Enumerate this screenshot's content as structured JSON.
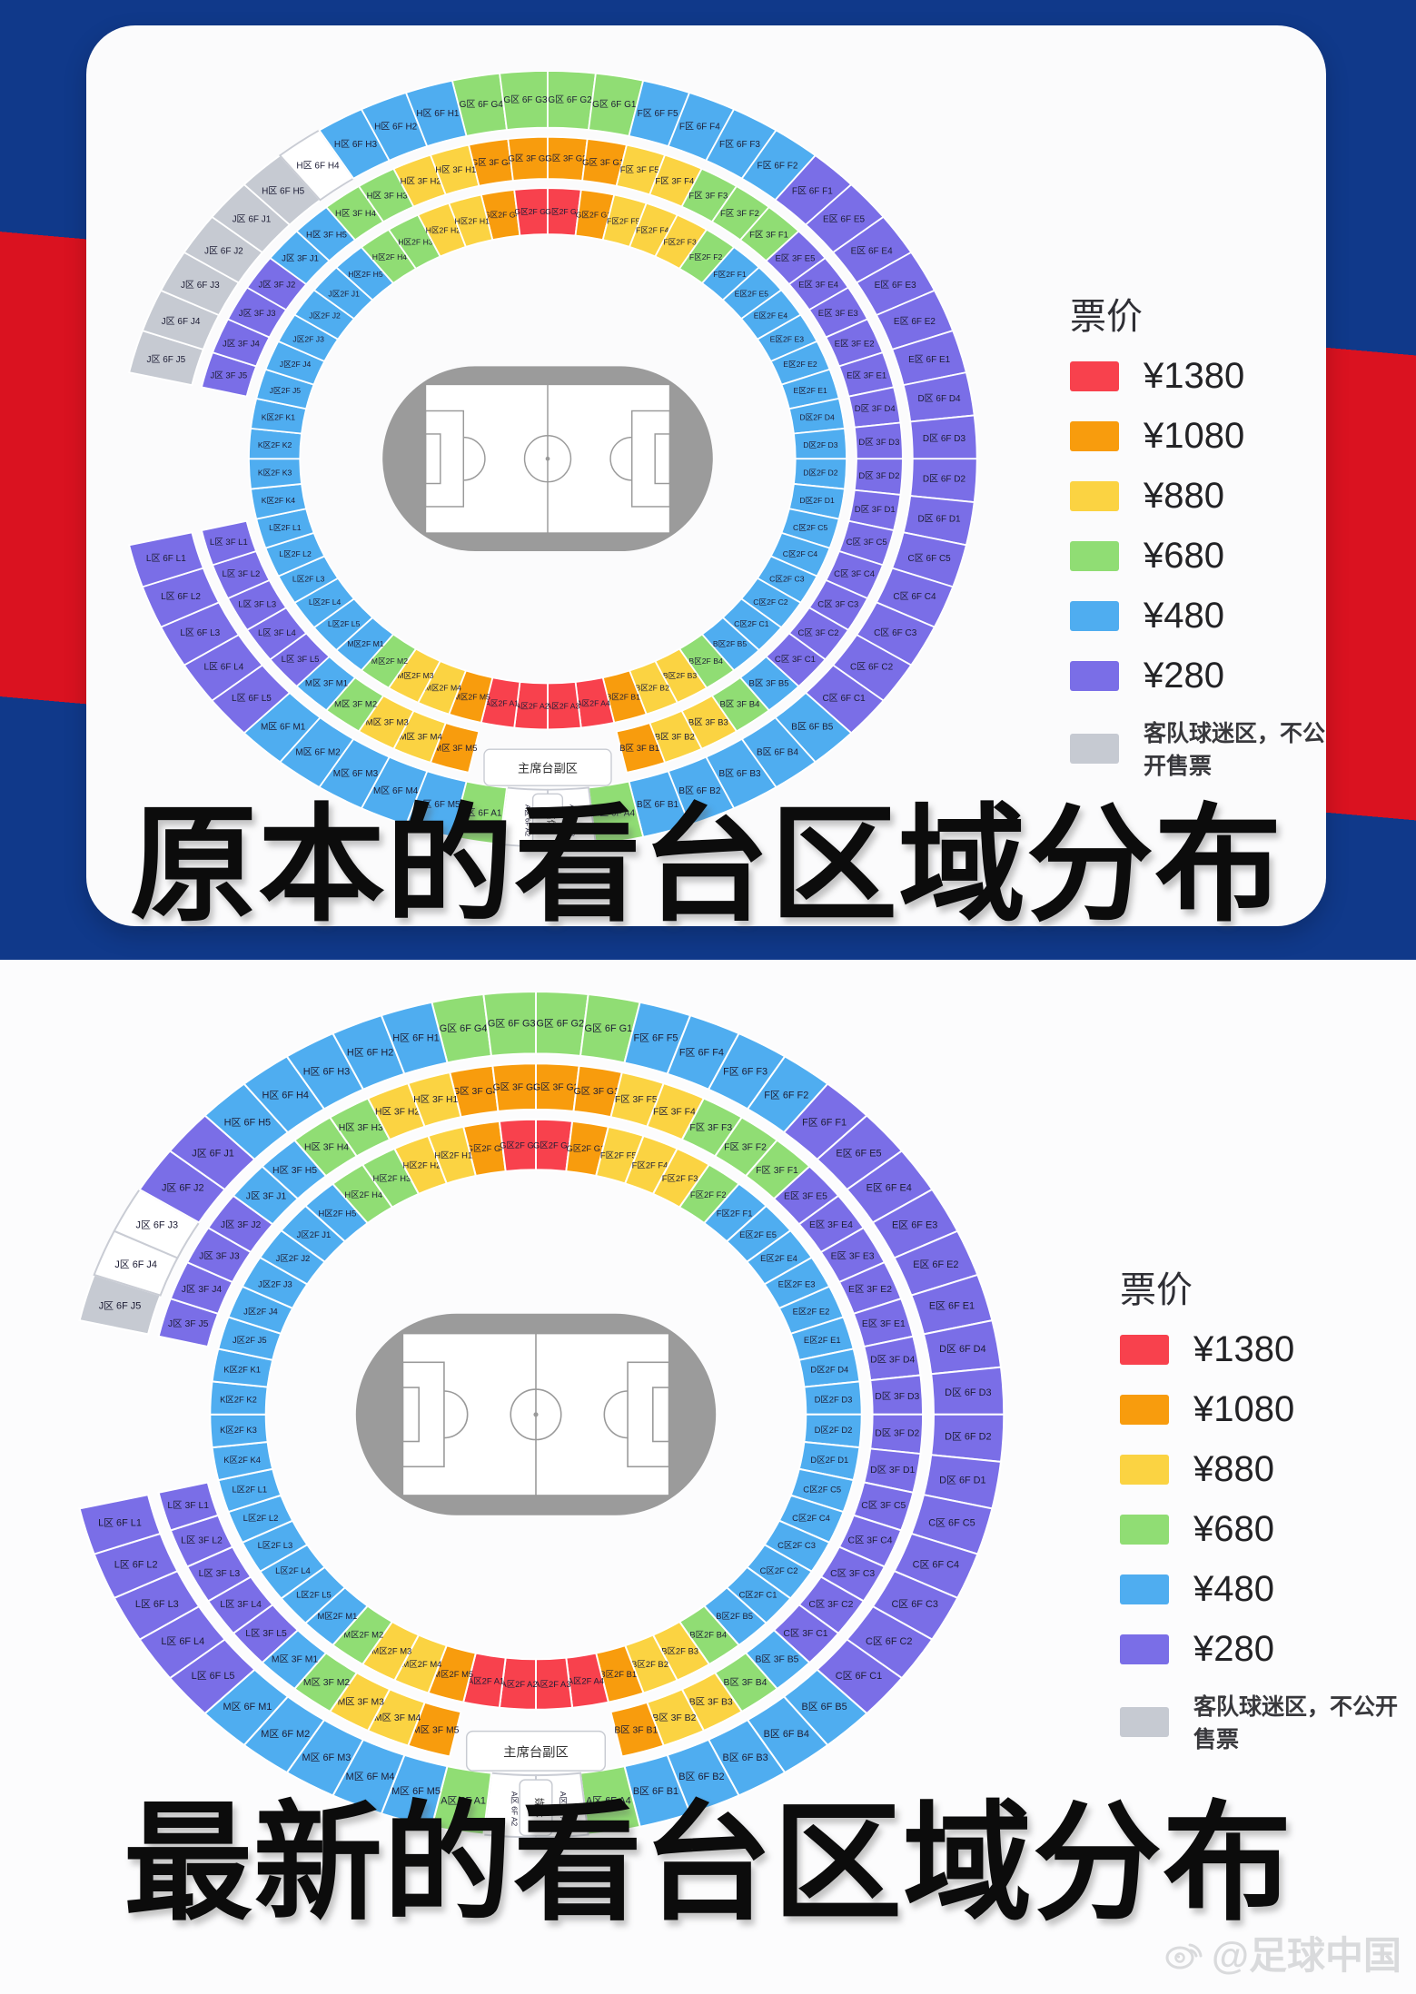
{
  "page": {
    "top_title": "原本的看台区域分布",
    "bottom_title": "最新的看台区域分布",
    "watermark": "@足球中国"
  },
  "legend": {
    "title": "票价",
    "items": [
      {
        "label": "¥1380",
        "color": "#F8414D"
      },
      {
        "label": "¥1080",
        "color": "#F89C0D"
      },
      {
        "label": "¥880",
        "color": "#FBD342"
      },
      {
        "label": "¥680",
        "color": "#90DD74"
      },
      {
        "label": "¥480",
        "color": "#4FADF0"
      },
      {
        "label": "¥280",
        "color": "#7A6EE7"
      }
    ],
    "away_note": {
      "label": "客队球迷区，不公开售票",
      "color": "#C6CAD2"
    }
  },
  "colors": {
    "r": "#F8414D",
    "o": "#F89C0D",
    "y": "#FBD342",
    "g": "#90DD74",
    "b": "#4FADF0",
    "p": "#7A6EE7",
    "x": "#C6CAD2",
    "w": "#FFFFFF"
  },
  "stadium_labels": {
    "vip_box": "主席台副区",
    "media_box": "媒体"
  },
  "stadiums": {
    "original": {
      "f6": [
        [
          "G区 6F G4",
          "g"
        ],
        [
          "G区 6F G3",
          "g"
        ],
        [
          "G区 6F G2",
          "g"
        ],
        [
          "G区 6F G1",
          "g"
        ],
        [
          "F区 6F F5",
          "b"
        ],
        [
          "F区 6F F4",
          "b"
        ],
        [
          "F区 6F F3",
          "b"
        ],
        [
          "F区 6F F2",
          "b"
        ],
        [
          "F区 6F F1",
          "p"
        ],
        [
          "E区 6F E5",
          "p"
        ],
        [
          "E区 6F E4",
          "p"
        ],
        [
          "E区 6F E3",
          "p"
        ],
        [
          "E区 6F E2",
          "p"
        ],
        [
          "E区 6F E1",
          "p"
        ],
        [
          "D区 6F D4",
          "p"
        ],
        [
          "D区 6F D3",
          "p"
        ],
        [
          "D区 6F D2",
          "p"
        ],
        [
          "D区 6F D1",
          "p"
        ],
        [
          "C区 6F C5",
          "p"
        ],
        [
          "C区 6F C4",
          "p"
        ],
        [
          "C区 6F C3",
          "p"
        ],
        [
          "C区 6F C2",
          "p"
        ],
        [
          "C区 6F C1",
          "p"
        ],
        [
          "B区 6F B5",
          "b"
        ],
        [
          "B区 6F B4",
          "b"
        ],
        [
          "B区 6F B3",
          "b"
        ],
        [
          "B区 6F B2",
          "b"
        ],
        [
          "B区 6F B1",
          "b"
        ],
        [
          "A区 6F A4",
          "g"
        ],
        [
          "A区 6F A3",
          "w"
        ],
        [
          "A区 6F A2",
          "w"
        ],
        [
          "A区 6F A1",
          "g"
        ],
        [
          "M区 6F M5",
          "b"
        ],
        [
          "M区 6F M4",
          "b"
        ],
        [
          "M区 6F M3",
          "b"
        ],
        [
          "M区 6F M2",
          "b"
        ],
        [
          "M区 6F M1",
          "b"
        ],
        [
          "L区 6F L5",
          "p"
        ],
        [
          "L区 6F L4",
          "p"
        ],
        [
          "L区 6F L3",
          "p"
        ],
        [
          "L区 6F L2",
          "p"
        ],
        [
          "L区 6F L1",
          "p"
        ],
        [
          "",
          "n"
        ],
        [
          "",
          "n"
        ],
        [
          "",
          "n"
        ],
        [
          "",
          "n"
        ],
        [
          "J区 6F J5",
          "x"
        ],
        [
          "J区 6F J4",
          "x"
        ],
        [
          "J区 6F J3",
          "x"
        ],
        [
          "J区 6F J2",
          "x"
        ],
        [
          "J区 6F J1",
          "x"
        ],
        [
          "H区 6F H5",
          "x"
        ],
        [
          "H区 6F H4",
          "w"
        ],
        [
          "H区 6F H3",
          "b"
        ],
        [
          "H区 6F H2",
          "b"
        ],
        [
          "H区 6F H1",
          "b"
        ]
      ],
      "f3": [
        [
          "G区 3F G4",
          "o"
        ],
        [
          "G区 3F G3",
          "o"
        ],
        [
          "G区 3F G2",
          "o"
        ],
        [
          "G区 3F G1",
          "o"
        ],
        [
          "F区 3F F5",
          "y"
        ],
        [
          "F区 3F F4",
          "y"
        ],
        [
          "F区 3F F3",
          "g"
        ],
        [
          "F区 3F F2",
          "g"
        ],
        [
          "F区 3F F1",
          "g"
        ],
        [
          "E区 3F E5",
          "p"
        ],
        [
          "E区 3F E4",
          "p"
        ],
        [
          "E区 3F E3",
          "p"
        ],
        [
          "E区 3F E2",
          "p"
        ],
        [
          "E区 3F E1",
          "p"
        ],
        [
          "D区 3F D4",
          "p"
        ],
        [
          "D区 3F D3",
          "p"
        ],
        [
          "D区 3F D2",
          "p"
        ],
        [
          "D区 3F D1",
          "p"
        ],
        [
          "C区 3F C5",
          "p"
        ],
        [
          "C区 3F C4",
          "p"
        ],
        [
          "C区 3F C3",
          "p"
        ],
        [
          "C区 3F C2",
          "p"
        ],
        [
          "C区 3F C1",
          "p"
        ],
        [
          "B区 3F B5",
          "b"
        ],
        [
          "B区 3F B4",
          "g"
        ],
        [
          "B区 3F B3",
          "y"
        ],
        [
          "B区 3F B2",
          "y"
        ],
        [
          "B区 3F B1",
          "o"
        ],
        [
          "",
          "n"
        ],
        [
          "",
          "n"
        ],
        [
          "",
          "n"
        ],
        [
          "",
          "n"
        ],
        [
          "M区 3F M5",
          "o"
        ],
        [
          "M区 3F M4",
          "y"
        ],
        [
          "M区 3F M3",
          "y"
        ],
        [
          "M区 3F M2",
          "g"
        ],
        [
          "M区 3F M1",
          "b"
        ],
        [
          "L区 3F L5",
          "p"
        ],
        [
          "L区 3F L4",
          "p"
        ],
        [
          "L区 3F L3",
          "p"
        ],
        [
          "L区 3F L2",
          "p"
        ],
        [
          "L区 3F L1",
          "p"
        ],
        [
          "",
          "n"
        ],
        [
          "",
          "n"
        ],
        [
          "",
          "n"
        ],
        [
          "",
          "n"
        ],
        [
          "J区 3F J5",
          "p"
        ],
        [
          "J区 3F J4",
          "p"
        ],
        [
          "J区 3F J3",
          "p"
        ],
        [
          "J区 3F J2",
          "p"
        ],
        [
          "J区 3F J1",
          "b"
        ],
        [
          "H区 3F H5",
          "b"
        ],
        [
          "H区 3F H4",
          "g"
        ],
        [
          "H区 3F H3",
          "g"
        ],
        [
          "H区 3F H2",
          "y"
        ],
        [
          "H区 3F H1",
          "y"
        ]
      ],
      "f2": [
        [
          "G区2F G4",
          "o"
        ],
        [
          "G区2F G3",
          "r"
        ],
        [
          "G区2F G2",
          "r"
        ],
        [
          "G区2F G1",
          "o"
        ],
        [
          "F区2F F5",
          "y"
        ],
        [
          "F区2F F4",
          "y"
        ],
        [
          "F区2F F3",
          "y"
        ],
        [
          "F区2F F2",
          "g"
        ],
        [
          "F区2F F1",
          "b"
        ],
        [
          "E区2F E5",
          "b"
        ],
        [
          "E区2F E4",
          "b"
        ],
        [
          "E区2F E3",
          "b"
        ],
        [
          "E区2F E2",
          "b"
        ],
        [
          "E区2F E1",
          "b"
        ],
        [
          "D区2F D4",
          "b"
        ],
        [
          "D区2F D3",
          "b"
        ],
        [
          "D区2F D2",
          "b"
        ],
        [
          "D区2F D1",
          "b"
        ],
        [
          "C区2F C5",
          "b"
        ],
        [
          "C区2F C4",
          "b"
        ],
        [
          "C区2F C3",
          "b"
        ],
        [
          "C区2F C2",
          "b"
        ],
        [
          "C区2F C1",
          "b"
        ],
        [
          "B区2F B5",
          "b"
        ],
        [
          "B区2F B4",
          "g"
        ],
        [
          "B区2F B3",
          "y"
        ],
        [
          "B区2F B2",
          "y"
        ],
        [
          "B区2F B1",
          "o"
        ],
        [
          "A区2F A4",
          "r"
        ],
        [
          "A区2F A3",
          "r"
        ],
        [
          "A区2F A2",
          "r"
        ],
        [
          "A区2F A1",
          "r"
        ],
        [
          "M区2F M5",
          "o"
        ],
        [
          "M区2F M4",
          "y"
        ],
        [
          "M区2F M3",
          "y"
        ],
        [
          "M区2F M2",
          "g"
        ],
        [
          "M区2F M1",
          "b"
        ],
        [
          "L区2F L5",
          "b"
        ],
        [
          "L区2F L4",
          "b"
        ],
        [
          "L区2F L3",
          "b"
        ],
        [
          "L区2F L2",
          "b"
        ],
        [
          "L区2F L1",
          "b"
        ],
        [
          "K区2F K4",
          "b"
        ],
        [
          "K区2F K3",
          "b"
        ],
        [
          "K区2F K2",
          "b"
        ],
        [
          "K区2F K1",
          "b"
        ],
        [
          "J区2F J5",
          "b"
        ],
        [
          "J区2F J4",
          "b"
        ],
        [
          "J区2F J3",
          "b"
        ],
        [
          "J区2F J2",
          "b"
        ],
        [
          "J区2F J1",
          "b"
        ],
        [
          "H区2F H5",
          "b"
        ],
        [
          "H区2F H4",
          "g"
        ],
        [
          "H区2F H3",
          "g"
        ],
        [
          "H区2F H2",
          "y"
        ],
        [
          "H区2F H1",
          "y"
        ]
      ]
    },
    "latest": {
      "f6": [
        [
          "G区 6F G4",
          "g"
        ],
        [
          "G区 6F G3",
          "g"
        ],
        [
          "G区 6F G2",
          "g"
        ],
        [
          "G区 6F G1",
          "g"
        ],
        [
          "F区 6F F5",
          "b"
        ],
        [
          "F区 6F F4",
          "b"
        ],
        [
          "F区 6F F3",
          "b"
        ],
        [
          "F区 6F F2",
          "b"
        ],
        [
          "F区 6F F1",
          "p"
        ],
        [
          "E区 6F E5",
          "p"
        ],
        [
          "E区 6F E4",
          "p"
        ],
        [
          "E区 6F E3",
          "p"
        ],
        [
          "E区 6F E2",
          "p"
        ],
        [
          "E区 6F E1",
          "p"
        ],
        [
          "D区 6F D4",
          "p"
        ],
        [
          "D区 6F D3",
          "p"
        ],
        [
          "D区 6F D2",
          "p"
        ],
        [
          "D区 6F D1",
          "p"
        ],
        [
          "C区 6F C5",
          "p"
        ],
        [
          "C区 6F C4",
          "p"
        ],
        [
          "C区 6F C3",
          "p"
        ],
        [
          "C区 6F C2",
          "p"
        ],
        [
          "C区 6F C1",
          "p"
        ],
        [
          "B区 6F B5",
          "b"
        ],
        [
          "B区 6F B4",
          "b"
        ],
        [
          "B区 6F B3",
          "b"
        ],
        [
          "B区 6F B2",
          "b"
        ],
        [
          "B区 6F B1",
          "b"
        ],
        [
          "A区 6F A4",
          "g"
        ],
        [
          "A区 6F A3",
          "w"
        ],
        [
          "A区 6F A2",
          "w"
        ],
        [
          "A区 6F A1",
          "g"
        ],
        [
          "M区 6F M5",
          "b"
        ],
        [
          "M区 6F M4",
          "b"
        ],
        [
          "M区 6F M3",
          "b"
        ],
        [
          "M区 6F M2",
          "b"
        ],
        [
          "M区 6F M1",
          "b"
        ],
        [
          "L区 6F L5",
          "p"
        ],
        [
          "L区 6F L4",
          "p"
        ],
        [
          "L区 6F L3",
          "p"
        ],
        [
          "L区 6F L2",
          "p"
        ],
        [
          "L区 6F L1",
          "p"
        ],
        [
          "",
          "n"
        ],
        [
          "",
          "n"
        ],
        [
          "",
          "n"
        ],
        [
          "",
          "n"
        ],
        [
          "J区 6F J5",
          "x"
        ],
        [
          "J区 6F J4",
          "w"
        ],
        [
          "J区 6F J3",
          "w"
        ],
        [
          "J区 6F J2",
          "p"
        ],
        [
          "J区 6F J1",
          "p"
        ],
        [
          "H区 6F H5",
          "b"
        ],
        [
          "H区 6F H4",
          "b"
        ],
        [
          "H区 6F H3",
          "b"
        ],
        [
          "H区 6F H2",
          "b"
        ],
        [
          "H区 6F H1",
          "b"
        ]
      ],
      "f3": [
        [
          "G区 3F G4",
          "o"
        ],
        [
          "G区 3F G3",
          "o"
        ],
        [
          "G区 3F G2",
          "o"
        ],
        [
          "G区 3F G1",
          "o"
        ],
        [
          "F区 3F F5",
          "y"
        ],
        [
          "F区 3F F4",
          "y"
        ],
        [
          "F区 3F F3",
          "g"
        ],
        [
          "F区 3F F2",
          "g"
        ],
        [
          "F区 3F F1",
          "g"
        ],
        [
          "E区 3F E5",
          "p"
        ],
        [
          "E区 3F E4",
          "p"
        ],
        [
          "E区 3F E3",
          "p"
        ],
        [
          "E区 3F E2",
          "p"
        ],
        [
          "E区 3F E1",
          "p"
        ],
        [
          "D区 3F D4",
          "p"
        ],
        [
          "D区 3F D3",
          "p"
        ],
        [
          "D区 3F D2",
          "p"
        ],
        [
          "D区 3F D1",
          "p"
        ],
        [
          "C区 3F C5",
          "p"
        ],
        [
          "C区 3F C4",
          "p"
        ],
        [
          "C区 3F C3",
          "p"
        ],
        [
          "C区 3F C2",
          "p"
        ],
        [
          "C区 3F C1",
          "p"
        ],
        [
          "B区 3F B5",
          "b"
        ],
        [
          "B区 3F B4",
          "g"
        ],
        [
          "B区 3F B3",
          "y"
        ],
        [
          "B区 3F B2",
          "y"
        ],
        [
          "B区 3F B1",
          "o"
        ],
        [
          "",
          "n"
        ],
        [
          "",
          "n"
        ],
        [
          "",
          "n"
        ],
        [
          "",
          "n"
        ],
        [
          "M区 3F M5",
          "o"
        ],
        [
          "M区 3F M4",
          "y"
        ],
        [
          "M区 3F M3",
          "y"
        ],
        [
          "M区 3F M2",
          "g"
        ],
        [
          "M区 3F M1",
          "b"
        ],
        [
          "L区 3F L5",
          "p"
        ],
        [
          "L区 3F L4",
          "p"
        ],
        [
          "L区 3F L3",
          "p"
        ],
        [
          "L区 3F L2",
          "p"
        ],
        [
          "L区 3F L1",
          "p"
        ],
        [
          "",
          "n"
        ],
        [
          "",
          "n"
        ],
        [
          "",
          "n"
        ],
        [
          "",
          "n"
        ],
        [
          "J区 3F J5",
          "p"
        ],
        [
          "J区 3F J4",
          "p"
        ],
        [
          "J区 3F J3",
          "p"
        ],
        [
          "J区 3F J2",
          "p"
        ],
        [
          "J区 3F J1",
          "b"
        ],
        [
          "H区 3F H5",
          "b"
        ],
        [
          "H区 3F H4",
          "g"
        ],
        [
          "H区 3F H3",
          "g"
        ],
        [
          "H区 3F H2",
          "y"
        ],
        [
          "H区 3F H1",
          "y"
        ]
      ],
      "f2": [
        [
          "G区2F G4",
          "o"
        ],
        [
          "G区2F G3",
          "r"
        ],
        [
          "G区2F G2",
          "r"
        ],
        [
          "G区2F G1",
          "o"
        ],
        [
          "F区2F F5",
          "y"
        ],
        [
          "F区2F F4",
          "y"
        ],
        [
          "F区2F F3",
          "y"
        ],
        [
          "F区2F F2",
          "g"
        ],
        [
          "F区2F F1",
          "b"
        ],
        [
          "E区2F E5",
          "b"
        ],
        [
          "E区2F E4",
          "b"
        ],
        [
          "E区2F E3",
          "b"
        ],
        [
          "E区2F E2",
          "b"
        ],
        [
          "E区2F E1",
          "b"
        ],
        [
          "D区2F D4",
          "b"
        ],
        [
          "D区2F D3",
          "b"
        ],
        [
          "D区2F D2",
          "b"
        ],
        [
          "D区2F D1",
          "b"
        ],
        [
          "C区2F C5",
          "b"
        ],
        [
          "C区2F C4",
          "b"
        ],
        [
          "C区2F C3",
          "b"
        ],
        [
          "C区2F C2",
          "b"
        ],
        [
          "C区2F C1",
          "b"
        ],
        [
          "B区2F B5",
          "b"
        ],
        [
          "B区2F B4",
          "g"
        ],
        [
          "B区2F B3",
          "y"
        ],
        [
          "B区2F B2",
          "y"
        ],
        [
          "B区2F B1",
          "o"
        ],
        [
          "A区2F A4",
          "r"
        ],
        [
          "A区2F A3",
          "r"
        ],
        [
          "A区2F A2",
          "r"
        ],
        [
          "A区2F A1",
          "r"
        ],
        [
          "M区2F M5",
          "o"
        ],
        [
          "M区2F M4",
          "y"
        ],
        [
          "M区2F M3",
          "y"
        ],
        [
          "M区2F M2",
          "g"
        ],
        [
          "M区2F M1",
          "b"
        ],
        [
          "L区2F L5",
          "b"
        ],
        [
          "L区2F L4",
          "b"
        ],
        [
          "L区2F L3",
          "b"
        ],
        [
          "L区2F L2",
          "b"
        ],
        [
          "L区2F L1",
          "b"
        ],
        [
          "K区2F K4",
          "b"
        ],
        [
          "K区2F K3",
          "b"
        ],
        [
          "K区2F K2",
          "b"
        ],
        [
          "K区2F K1",
          "b"
        ],
        [
          "J区2F J5",
          "b"
        ],
        [
          "J区2F J4",
          "b"
        ],
        [
          "J区2F J3",
          "b"
        ],
        [
          "J区2F J2",
          "b"
        ],
        [
          "J区2F J1",
          "b"
        ],
        [
          "H区2F H5",
          "b"
        ],
        [
          "H区2F H4",
          "g"
        ],
        [
          "H区2F H3",
          "g"
        ],
        [
          "H区2F H2",
          "y"
        ],
        [
          "H区2F H1",
          "y"
        ]
      ]
    }
  }
}
